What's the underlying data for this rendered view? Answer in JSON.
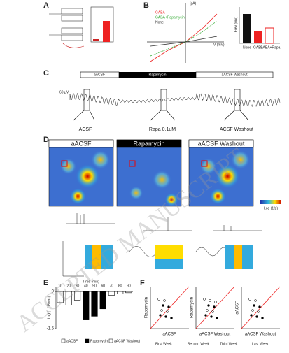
{
  "panels": {
    "A": "A",
    "B": "B",
    "C": "C",
    "D": "D",
    "E": "E",
    "F": "F"
  },
  "b": {
    "y_label": "I (pA)",
    "x_label": "V (mV)",
    "legend": [
      "GABA",
      "GABA+Rapamycin",
      "None"
    ],
    "bar_y_label": "Erev (mV)",
    "bar_cats": [
      "None",
      "GABA",
      "GABA+Rapa"
    ]
  },
  "c": {
    "conditions": [
      "aACSF",
      "Rapamycin",
      "aACSF Washout"
    ],
    "scale": "60 µV",
    "epochs": [
      "ACSF",
      "Rapa 0.1uM",
      "ACSF Washout"
    ]
  },
  "d": {
    "titles": [
      "aACSF",
      "Rapamycin",
      "aACSF Washout"
    ],
    "colorbar": "Log (1/p)"
  },
  "e": {
    "type": "bar",
    "x_label": "Time (min)",
    "y_label": "Log (1 / Pmax)",
    "categories": [
      "10",
      "20",
      "30",
      "40",
      "50",
      "60",
      "70",
      "80",
      "90"
    ],
    "values": [
      -0.45,
      -0.55,
      -0.35,
      -1.15,
      -1.0,
      -0.7,
      -0.15,
      -0.1,
      -0.05
    ],
    "colors": [
      "#ffffff",
      "#ffffff",
      "#ffffff",
      "#000000",
      "#000000",
      "#000000",
      "#ffffff",
      "#ffffff",
      "#ffffff"
    ],
    "ylim": [
      -1.5,
      0.2
    ],
    "yticks": [
      0,
      -1.5
    ],
    "legend": [
      "aACSF",
      "Rapamycin",
      "aACSF Washout"
    ]
  },
  "f": {
    "y_labels": [
      "Rapamycin",
      "Rapamycin",
      "aACSF"
    ],
    "x_labels": [
      "aACSF",
      "aACSF Washout",
      "aACSF Washout"
    ],
    "legend": [
      "First Week",
      "Second Week",
      "Third Week",
      "Last Week"
    ]
  },
  "watermark": "ACCEPTED MANUSCRIPT"
}
